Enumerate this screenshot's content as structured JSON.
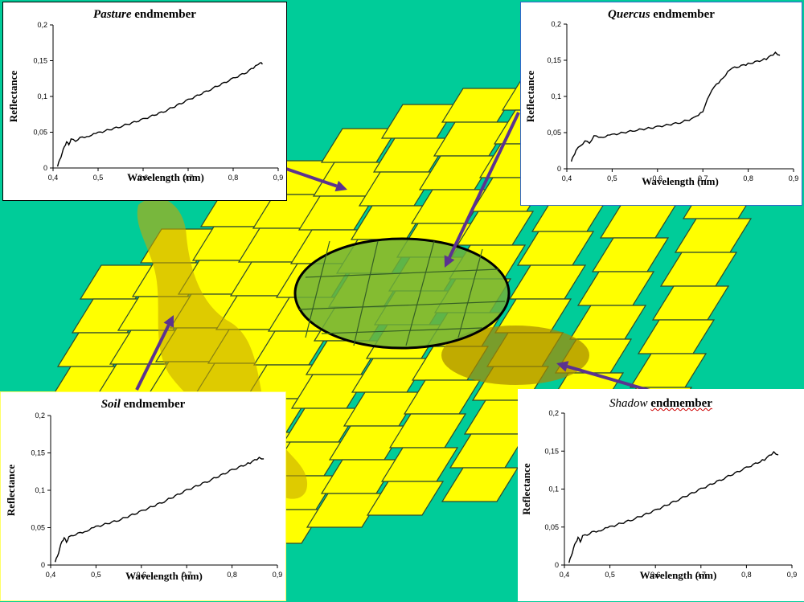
{
  "colors": {
    "background": "#00cc99",
    "tiles": "#ffff00",
    "tile_edge": "#2e4a2e",
    "ellipse_fill": "#6fb03a",
    "patch": "#c8a800",
    "arrow": "#5b3290",
    "panel_border": "#000000",
    "soil_panel_border": "#ffff66",
    "quercus_panel_border": "#3366cc"
  },
  "panels": [
    {
      "id": "pasture",
      "title_italic": "Pasture",
      "title_rest": "endmember",
      "title_style": "bold",
      "chart_data": {
        "type": "line",
        "title": "Pasture endmember",
        "xlabel": "Wavelength (nm)",
        "ylabel": "Reflectance",
        "xlim": [
          0.4,
          0.9
        ],
        "ylim": [
          0,
          0.2
        ],
        "xticks": [
          "0,4",
          "0,5",
          "0,6",
          "0,7",
          "0,8",
          "0,9"
        ],
        "yticks": [
          "0",
          "0,05",
          "0,1",
          "0,15",
          "0,2"
        ],
        "grid": false,
        "series": [
          {
            "x": [
              0.41,
              0.415,
              0.42,
              0.425,
              0.43,
              0.435,
              0.44,
              0.45,
              0.46,
              0.48,
              0.5,
              0.55,
              0.6,
              0.65,
              0.7,
              0.75,
              0.8,
              0.83,
              0.85,
              0.86,
              0.865
            ],
            "y": [
              0.002,
              0.012,
              0.02,
              0.03,
              0.036,
              0.033,
              0.04,
              0.038,
              0.042,
              0.045,
              0.049,
              0.058,
              0.068,
              0.08,
              0.095,
              0.11,
              0.125,
              0.134,
              0.142,
              0.148,
              0.145
            ]
          }
        ]
      }
    },
    {
      "id": "quercus",
      "title_italic": "Quercus",
      "title_rest": "endmember",
      "title_style": "bold",
      "chart_data": {
        "type": "line",
        "title": "Quercus endmember",
        "xlabel": "Wavelength (nm)",
        "ylabel": "Reflectance",
        "xlim": [
          0.4,
          0.9
        ],
        "ylim": [
          0,
          0.2
        ],
        "xticks": [
          "0,4",
          "0,5",
          "0,6",
          "0,7",
          "0,8",
          "0,9"
        ],
        "yticks": [
          "0",
          "0,05",
          "0,1",
          "0,15",
          "0,2"
        ],
        "grid": false,
        "series": [
          {
            "x": [
              0.41,
              0.415,
              0.42,
              0.43,
              0.44,
              0.45,
              0.46,
              0.48,
              0.5,
              0.55,
              0.6,
              0.65,
              0.68,
              0.7,
              0.71,
              0.72,
              0.74,
              0.76,
              0.8,
              0.84,
              0.86,
              0.87
            ],
            "y": [
              0.01,
              0.018,
              0.025,
              0.032,
              0.038,
              0.036,
              0.045,
              0.044,
              0.047,
              0.053,
              0.058,
              0.064,
              0.07,
              0.08,
              0.095,
              0.11,
              0.122,
              0.138,
              0.145,
              0.152,
              0.16,
              0.157
            ]
          }
        ]
      }
    },
    {
      "id": "soil",
      "title_italic": "Soil",
      "title_rest": "endmember",
      "title_style": "bold",
      "chart_data": {
        "type": "line",
        "title": "Soil endmember",
        "xlabel": "Wavelength (nm)",
        "ylabel": "Reflectance",
        "xlim": [
          0.4,
          0.9
        ],
        "ylim": [
          0,
          0.2
        ],
        "xticks": [
          "0,4",
          "0,5",
          "0,6",
          "0,7",
          "0,8",
          "0,9"
        ],
        "yticks": [
          "0",
          "0,05",
          "0,1",
          "0,15",
          "0,2"
        ],
        "grid": false,
        "series": [
          {
            "x": [
              0.41,
              0.415,
              0.42,
              0.425,
              0.43,
              0.435,
              0.44,
              0.45,
              0.46,
              0.48,
              0.5,
              0.55,
              0.6,
              0.65,
              0.7,
              0.75,
              0.8,
              0.84,
              0.86,
              0.87
            ],
            "y": [
              0.004,
              0.012,
              0.022,
              0.032,
              0.036,
              0.031,
              0.037,
              0.04,
              0.042,
              0.046,
              0.051,
              0.06,
              0.072,
              0.085,
              0.1,
              0.113,
              0.127,
              0.137,
              0.143,
              0.142
            ]
          }
        ]
      }
    },
    {
      "id": "shadow",
      "title_italic": "Shadow",
      "title_rest": "endmember",
      "title_style": "normal-underlined",
      "chart_data": {
        "type": "line",
        "title": "Shadow endmember",
        "xlabel": "Wavelength (nm)",
        "ylabel": "Reflectance",
        "xlim": [
          0.4,
          0.9
        ],
        "ylim": [
          0,
          0.2
        ],
        "xticks": [
          "0,4",
          "0,5",
          "0,6",
          "0,7",
          "0,8",
          "0,9"
        ],
        "yticks": [
          "0",
          "0,05",
          "0,1",
          "0,15",
          "0,2"
        ],
        "grid": false,
        "series": [
          {
            "x": [
              0.41,
              0.415,
              0.42,
              0.425,
              0.43,
              0.435,
              0.44,
              0.45,
              0.46,
              0.48,
              0.5,
              0.55,
              0.6,
              0.65,
              0.7,
              0.75,
              0.8,
              0.84,
              0.86,
              0.87
            ],
            "y": [
              0.003,
              0.012,
              0.022,
              0.03,
              0.036,
              0.031,
              0.038,
              0.04,
              0.043,
              0.046,
              0.05,
              0.06,
              0.072,
              0.086,
              0.1,
              0.114,
              0.128,
              0.139,
              0.148,
              0.145
            ]
          }
        ]
      }
    }
  ]
}
